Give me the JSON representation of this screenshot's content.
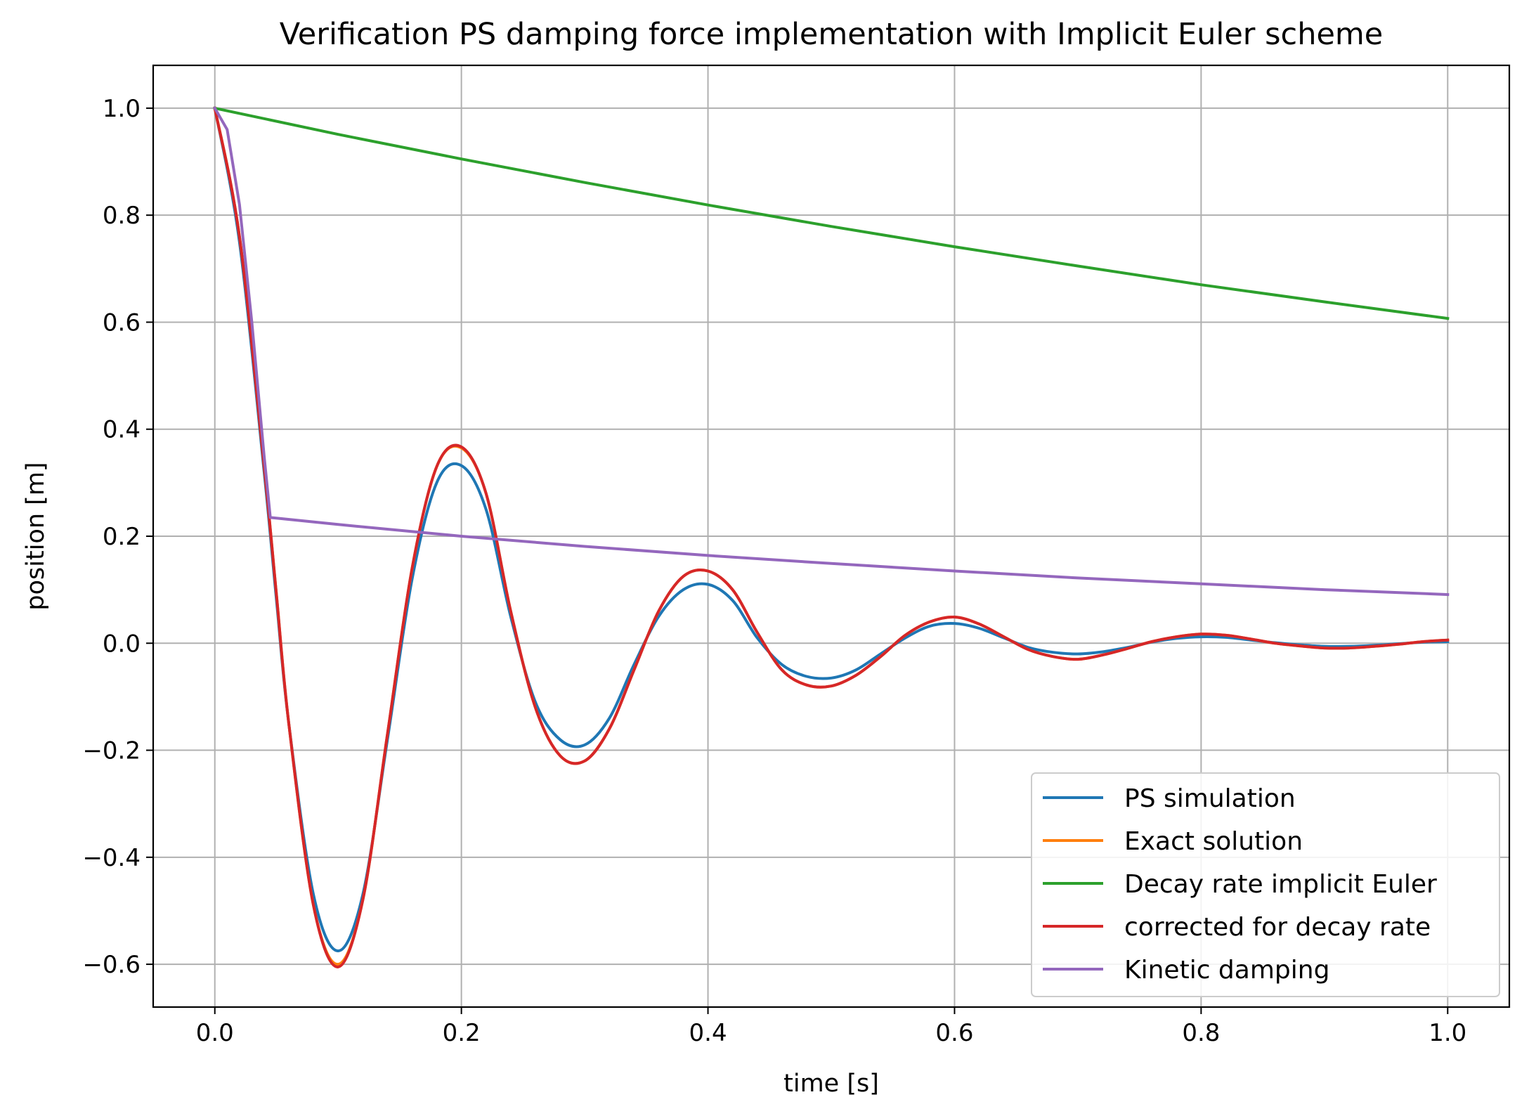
{
  "chart_data": {
    "type": "line",
    "title": "Verification PS damping force implementation with Implicit Euler scheme",
    "xlabel": "time [s]",
    "ylabel": "position [m]",
    "xlim": [
      -0.05,
      1.05
    ],
    "ylim": [
      -0.68,
      1.08
    ],
    "xticks": [
      0.0,
      0.2,
      0.4,
      0.6,
      0.8,
      1.0
    ],
    "xtick_labels": [
      "0.0",
      "0.2",
      "0.4",
      "0.6",
      "0.8",
      "1.0"
    ],
    "yticks": [
      -0.6,
      -0.4,
      -0.2,
      0.0,
      0.2,
      0.4,
      0.6,
      0.8,
      1.0
    ],
    "ytick_labels": [
      "−0.6",
      "−0.4",
      "−0.2",
      "0.0",
      "0.2",
      "0.4",
      "0.6",
      "0.8",
      "1.0"
    ],
    "grid": true,
    "legend_position": "lower-right",
    "series": [
      {
        "name": "PS simulation",
        "color": "#1f77b4",
        "x": [
          0.0,
          0.02,
          0.04,
          0.05,
          0.06,
          0.08,
          0.1,
          0.12,
          0.14,
          0.16,
          0.18,
          0.2,
          0.22,
          0.24,
          0.26,
          0.28,
          0.3,
          0.32,
          0.34,
          0.36,
          0.38,
          0.4,
          0.42,
          0.44,
          0.46,
          0.48,
          0.5,
          0.52,
          0.54,
          0.56,
          0.58,
          0.6,
          0.62,
          0.64,
          0.66,
          0.68,
          0.7,
          0.72,
          0.74,
          0.76,
          0.78,
          0.8,
          0.82,
          0.84,
          0.86,
          0.88,
          0.9,
          0.92,
          0.94,
          0.96,
          0.98,
          1.0
        ],
        "y": [
          1.0,
          0.75,
          0.32,
          0.08,
          -0.15,
          -0.47,
          -0.575,
          -0.47,
          -0.18,
          0.12,
          0.3,
          0.332,
          0.25,
          0.05,
          -0.11,
          -0.18,
          -0.19,
          -0.14,
          -0.04,
          0.05,
          0.1,
          0.11,
          0.08,
          0.01,
          -0.04,
          -0.062,
          -0.065,
          -0.05,
          -0.02,
          0.01,
          0.032,
          0.037,
          0.028,
          0.01,
          -0.008,
          -0.017,
          -0.02,
          -0.016,
          -0.008,
          0.002,
          0.009,
          0.012,
          0.011,
          0.006,
          0.001,
          -0.003,
          -0.006,
          -0.006,
          -0.004,
          -0.001,
          0.002,
          0.003
        ]
      },
      {
        "name": "Exact solution",
        "color": "#ff7f0e",
        "x": [
          0.0,
          0.02,
          0.04,
          0.05,
          0.06,
          0.08,
          0.1,
          0.12,
          0.14,
          0.16,
          0.18,
          0.2,
          0.22,
          0.24,
          0.26,
          0.28,
          0.3,
          0.32,
          0.34,
          0.36,
          0.38,
          0.4,
          0.42,
          0.44,
          0.46,
          0.48,
          0.5,
          0.52,
          0.54,
          0.56,
          0.58,
          0.6,
          0.62,
          0.64,
          0.66,
          0.68,
          0.7,
          0.72,
          0.74,
          0.76,
          0.78,
          0.8,
          0.82,
          0.84,
          0.86,
          0.88,
          0.9,
          0.92,
          0.94,
          0.96,
          0.98,
          1.0
        ],
        "y": [
          1.0,
          0.76,
          0.33,
          0.09,
          -0.15,
          -0.49,
          -0.6,
          -0.48,
          -0.17,
          0.14,
          0.33,
          0.365,
          0.28,
          0.06,
          -0.12,
          -0.21,
          -0.22,
          -0.16,
          -0.05,
          0.06,
          0.125,
          0.135,
          0.1,
          0.02,
          -0.05,
          -0.078,
          -0.08,
          -0.06,
          -0.025,
          0.015,
          0.04,
          0.049,
          0.036,
          0.012,
          -0.012,
          -0.025,
          -0.03,
          -0.022,
          -0.01,
          0.003,
          0.012,
          0.017,
          0.015,
          0.008,
          0.0,
          -0.005,
          -0.009,
          -0.009,
          -0.006,
          -0.002,
          0.003,
          0.006
        ]
      },
      {
        "name": "Decay rate implicit Euler",
        "color": "#2ca02c",
        "x": [
          0.0,
          0.1,
          0.2,
          0.3,
          0.4,
          0.5,
          0.6,
          0.7,
          0.8,
          0.9,
          1.0
        ],
        "y": [
          1.0,
          0.951,
          0.905,
          0.861,
          0.819,
          0.779,
          0.741,
          0.705,
          0.67,
          0.638,
          0.607
        ]
      },
      {
        "name": "corrected for decay rate",
        "color": "#d62728",
        "x": [
          0.0,
          0.02,
          0.04,
          0.05,
          0.06,
          0.08,
          0.1,
          0.12,
          0.14,
          0.16,
          0.18,
          0.2,
          0.22,
          0.24,
          0.26,
          0.28,
          0.3,
          0.32,
          0.34,
          0.36,
          0.38,
          0.4,
          0.42,
          0.44,
          0.46,
          0.48,
          0.5,
          0.52,
          0.54,
          0.56,
          0.58,
          0.6,
          0.62,
          0.64,
          0.66,
          0.68,
          0.7,
          0.72,
          0.74,
          0.76,
          0.78,
          0.8,
          0.82,
          0.84,
          0.86,
          0.88,
          0.9,
          0.92,
          0.94,
          0.96,
          0.98,
          1.0
        ],
        "y": [
          1.0,
          0.76,
          0.33,
          0.09,
          -0.15,
          -0.49,
          -0.605,
          -0.48,
          -0.17,
          0.14,
          0.33,
          0.367,
          0.28,
          0.06,
          -0.12,
          -0.21,
          -0.22,
          -0.16,
          -0.05,
          0.06,
          0.125,
          0.135,
          0.1,
          0.02,
          -0.05,
          -0.078,
          -0.08,
          -0.06,
          -0.025,
          0.015,
          0.04,
          0.049,
          0.036,
          0.012,
          -0.012,
          -0.025,
          -0.03,
          -0.022,
          -0.01,
          0.003,
          0.012,
          0.017,
          0.015,
          0.008,
          0.0,
          -0.005,
          -0.009,
          -0.009,
          -0.006,
          -0.002,
          0.003,
          0.006
        ]
      },
      {
        "name": "Kinetic damping",
        "color": "#9467bd",
        "x": [
          0.0,
          0.01,
          0.02,
          0.03,
          0.04,
          0.045,
          0.1,
          0.2,
          0.3,
          0.4,
          0.5,
          0.6,
          0.7,
          0.8,
          0.9,
          1.0
        ],
        "y": [
          1.0,
          0.96,
          0.82,
          0.6,
          0.35,
          0.235,
          0.222,
          0.2,
          0.181,
          0.164,
          0.149,
          0.135,
          0.122,
          0.111,
          0.1,
          0.091
        ]
      }
    ]
  }
}
